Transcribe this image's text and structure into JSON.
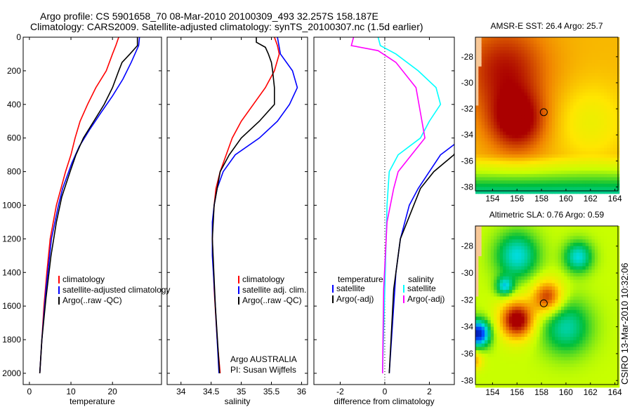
{
  "title_line1": "Argo profile: CS 5901658_70 08-Mar-2010 20100309_493 32.257S 158.187E",
  "title_line2": "Climatology: CARS2009. Satellite-adjusted climatology: synTS_20100307.nc (1.5d earlier)",
  "credit": "CSIRO 13-Mar-2010 10:32:06",
  "colors": {
    "climatology": "#ff0000",
    "satellite": "#0000ff",
    "argo": "#000000",
    "sal_argo_adj": "#ff00ff",
    "sal_satellite": "#00ffff"
  },
  "chart_data": [
    {
      "type": "line",
      "xlabel": "temperature",
      "ylabel": "",
      "xlim": [
        -1.5,
        31.8
      ],
      "ylim": [
        2067,
        0
      ],
      "xticks": [
        "0",
        "10",
        "20"
      ],
      "yticks": [
        "0",
        "200",
        "400",
        "600",
        "800",
        "1000",
        "1200",
        "1400",
        "1600",
        "1800",
        "2000"
      ],
      "legend": [
        "climatology",
        "satellite-adjusted climatology",
        "Argo(..raw -QC)"
      ],
      "legend_placement": "bottom-right",
      "series": [
        {
          "name": "climatology",
          "color": "#ff0000",
          "points": [
            [
              21.5,
              0
            ],
            [
              20.8,
              50
            ],
            [
              20,
              100
            ],
            [
              18.5,
              200
            ],
            [
              16,
              300
            ],
            [
              14,
              400
            ],
            [
              12.2,
              500
            ],
            [
              11,
              600
            ],
            [
              10,
              700
            ],
            [
              8.7,
              800
            ],
            [
              6.5,
              1000
            ],
            [
              5,
              1200
            ],
            [
              4.2,
              1400
            ],
            [
              3.5,
              1600
            ],
            [
              3,
              1800
            ],
            [
              2.5,
              2000
            ]
          ]
        },
        {
          "name": "satellite-adjusted climatology",
          "color": "#0000ff",
          "points": [
            [
              26.5,
              0
            ],
            [
              26.3,
              50
            ],
            [
              24.5,
              150
            ],
            [
              22.5,
              250
            ],
            [
              20,
              350
            ],
            [
              17.2,
              450
            ],
            [
              14.5,
              550
            ],
            [
              12,
              650
            ],
            [
              10.2,
              750
            ],
            [
              8,
              900
            ],
            [
              7,
              1000
            ],
            [
              5.3,
              1200
            ],
            [
              4,
              1500
            ],
            [
              3,
              1800
            ],
            [
              2.5,
              2000
            ]
          ]
        },
        {
          "name": "Argo(..raw -QC)",
          "color": "#000000",
          "points": [
            [
              26,
              0
            ],
            [
              26,
              50
            ],
            [
              24.2,
              100
            ],
            [
              22.3,
              150
            ],
            [
              21.5,
              200
            ],
            [
              20,
              300
            ],
            [
              18,
              400
            ],
            [
              15.5,
              500
            ],
            [
              13,
              600
            ],
            [
              11.2,
              700
            ],
            [
              9.8,
              800
            ],
            [
              7.8,
              950
            ],
            [
              6.5,
              1100
            ],
            [
              5.2,
              1300
            ],
            [
              4,
              1550
            ],
            [
              3,
              1800
            ],
            [
              2.5,
              2000
            ]
          ]
        }
      ]
    },
    {
      "type": "line",
      "xlabel": "salinity",
      "xlim": [
        33.77,
        36.1
      ],
      "ylim": [
        2067,
        0
      ],
      "xticks": [
        "34",
        "34.5",
        "35",
        "35.5",
        "36"
      ],
      "legend": [
        "climatology",
        "satellite adj. clim.",
        "Argo(..raw -QC)"
      ],
      "legend_placement": "bottom-right",
      "annotation": [
        "Argo AUSTRALIA",
        "PI: Susan Wijffels"
      ],
      "series": [
        {
          "name": "climatology",
          "color": "#ff0000",
          "points": [
            [
              35.55,
              0
            ],
            [
              35.6,
              50
            ],
            [
              35.63,
              100
            ],
            [
              35.55,
              200
            ],
            [
              35.4,
              300
            ],
            [
              35.2,
              400
            ],
            [
              35.0,
              500
            ],
            [
              34.85,
              600
            ],
            [
              34.75,
              700
            ],
            [
              34.65,
              800
            ],
            [
              34.58,
              900
            ],
            [
              34.55,
              1000
            ],
            [
              34.53,
              1100
            ],
            [
              34.52,
              1200
            ],
            [
              34.55,
              1500
            ],
            [
              34.6,
              1800
            ],
            [
              34.65,
              2000
            ]
          ]
        },
        {
          "name": "satellite adj. clim.",
          "color": "#0000ff",
          "points": [
            [
              35.6,
              0
            ],
            [
              35.65,
              100
            ],
            [
              35.85,
              200
            ],
            [
              35.93,
              300
            ],
            [
              35.8,
              400
            ],
            [
              35.6,
              500
            ],
            [
              35.3,
              600
            ],
            [
              34.9,
              700
            ],
            [
              34.7,
              800
            ],
            [
              34.6,
              900
            ],
            [
              34.55,
              1000
            ],
            [
              34.52,
              1100
            ],
            [
              34.52,
              1300
            ],
            [
              34.57,
              1600
            ],
            [
              34.63,
              2000
            ]
          ]
        },
        {
          "name": "Argo(..raw -QC)",
          "color": "#000000",
          "points": [
            [
              35.25,
              0
            ],
            [
              35.25,
              30
            ],
            [
              35.4,
              60
            ],
            [
              35.45,
              100
            ],
            [
              35.5,
              150
            ],
            [
              35.52,
              200
            ],
            [
              35.55,
              300
            ],
            [
              35.55,
              400
            ],
            [
              35.3,
              500
            ],
            [
              35.0,
              600
            ],
            [
              34.8,
              700
            ],
            [
              34.65,
              800
            ],
            [
              34.55,
              1000
            ],
            [
              34.52,
              1200
            ],
            [
              34.57,
              1600
            ],
            [
              34.64,
              2000
            ]
          ]
        }
      ]
    },
    {
      "type": "line",
      "xlabel": "difference from climatology",
      "xlim": [
        -3.18,
        3.12
      ],
      "ylim": [
        2067,
        0
      ],
      "xticks": [
        "-2",
        "0",
        "2"
      ],
      "legend_headers": [
        "temperature",
        "salinity"
      ],
      "legend": [
        "satellite",
        "Argo(-adj)",
        "satellite",
        "Argo(-adj)"
      ],
      "legend_placement": "bottom-center",
      "series": [
        {
          "name": "temperature satellite",
          "color": "#0000ff",
          "points": [
            [
              3.3,
              620
            ],
            [
              2.5,
              700
            ],
            [
              2,
              800
            ],
            [
              1.5,
              900
            ],
            [
              1.1,
              1000
            ],
            [
              0.7,
              1200
            ],
            [
              0.5,
              1400
            ],
            [
              0.4,
              1600
            ],
            [
              0.2,
              2000
            ]
          ]
        },
        {
          "name": "temperature Argo(-adj)",
          "color": "#000000",
          "points": [
            [
              3.3,
              640
            ],
            [
              3.1,
              700
            ],
            [
              2.2,
              800
            ],
            [
              1.6,
              900
            ],
            [
              1.3,
              1000
            ],
            [
              0.7,
              1200
            ],
            [
              0.4,
              1500
            ],
            [
              0.2,
              2000
            ]
          ]
        },
        {
          "name": "salinity satellite",
          "color": "#00ffff",
          "points": [
            [
              -0.3,
              0
            ],
            [
              -0.2,
              50
            ],
            [
              0.5,
              100
            ],
            [
              1.5,
              200
            ],
            [
              2.3,
              300
            ],
            [
              2.5,
              400
            ],
            [
              2.0,
              500
            ],
            [
              1.6,
              600
            ],
            [
              0.6,
              700
            ],
            [
              0.2,
              800
            ],
            [
              0.1,
              1000
            ],
            [
              0,
              1500
            ],
            [
              -0.1,
              2000
            ]
          ]
        },
        {
          "name": "salinity Argo(-adj)",
          "color": "#ff00ff",
          "points": [
            [
              -1.4,
              0
            ],
            [
              -1.5,
              50
            ],
            [
              -0.3,
              80
            ],
            [
              0.5,
              150
            ],
            [
              1.4,
              300
            ],
            [
              1.6,
              450
            ],
            [
              1.8,
              600
            ],
            [
              1.2,
              700
            ],
            [
              0.6,
              800
            ],
            [
              0.4,
              900
            ],
            [
              0.1,
              1100
            ],
            [
              -0.05,
              1500
            ],
            [
              -0.1,
              2000
            ]
          ]
        }
      ]
    },
    {
      "type": "heatmap",
      "title": "AMSR-E SST: 26.4 Argo: 25.7",
      "xticks": [
        "154",
        "156",
        "158",
        "160",
        "162",
        "164"
      ],
      "yticks": [
        "-28",
        "-30",
        "-32",
        "-34",
        "-36",
        "-38"
      ],
      "marker": [
        158.187,
        -32.257
      ]
    },
    {
      "type": "heatmap",
      "title": "Altimetric SLA: 0.76 Argo: 0.59",
      "xticks": [
        "154",
        "156",
        "158",
        "160",
        "162",
        "164"
      ],
      "yticks": [
        "-28",
        "-30",
        "-32",
        "-34",
        "-36",
        "-38"
      ],
      "marker": [
        158.187,
        -32.257
      ]
    }
  ]
}
